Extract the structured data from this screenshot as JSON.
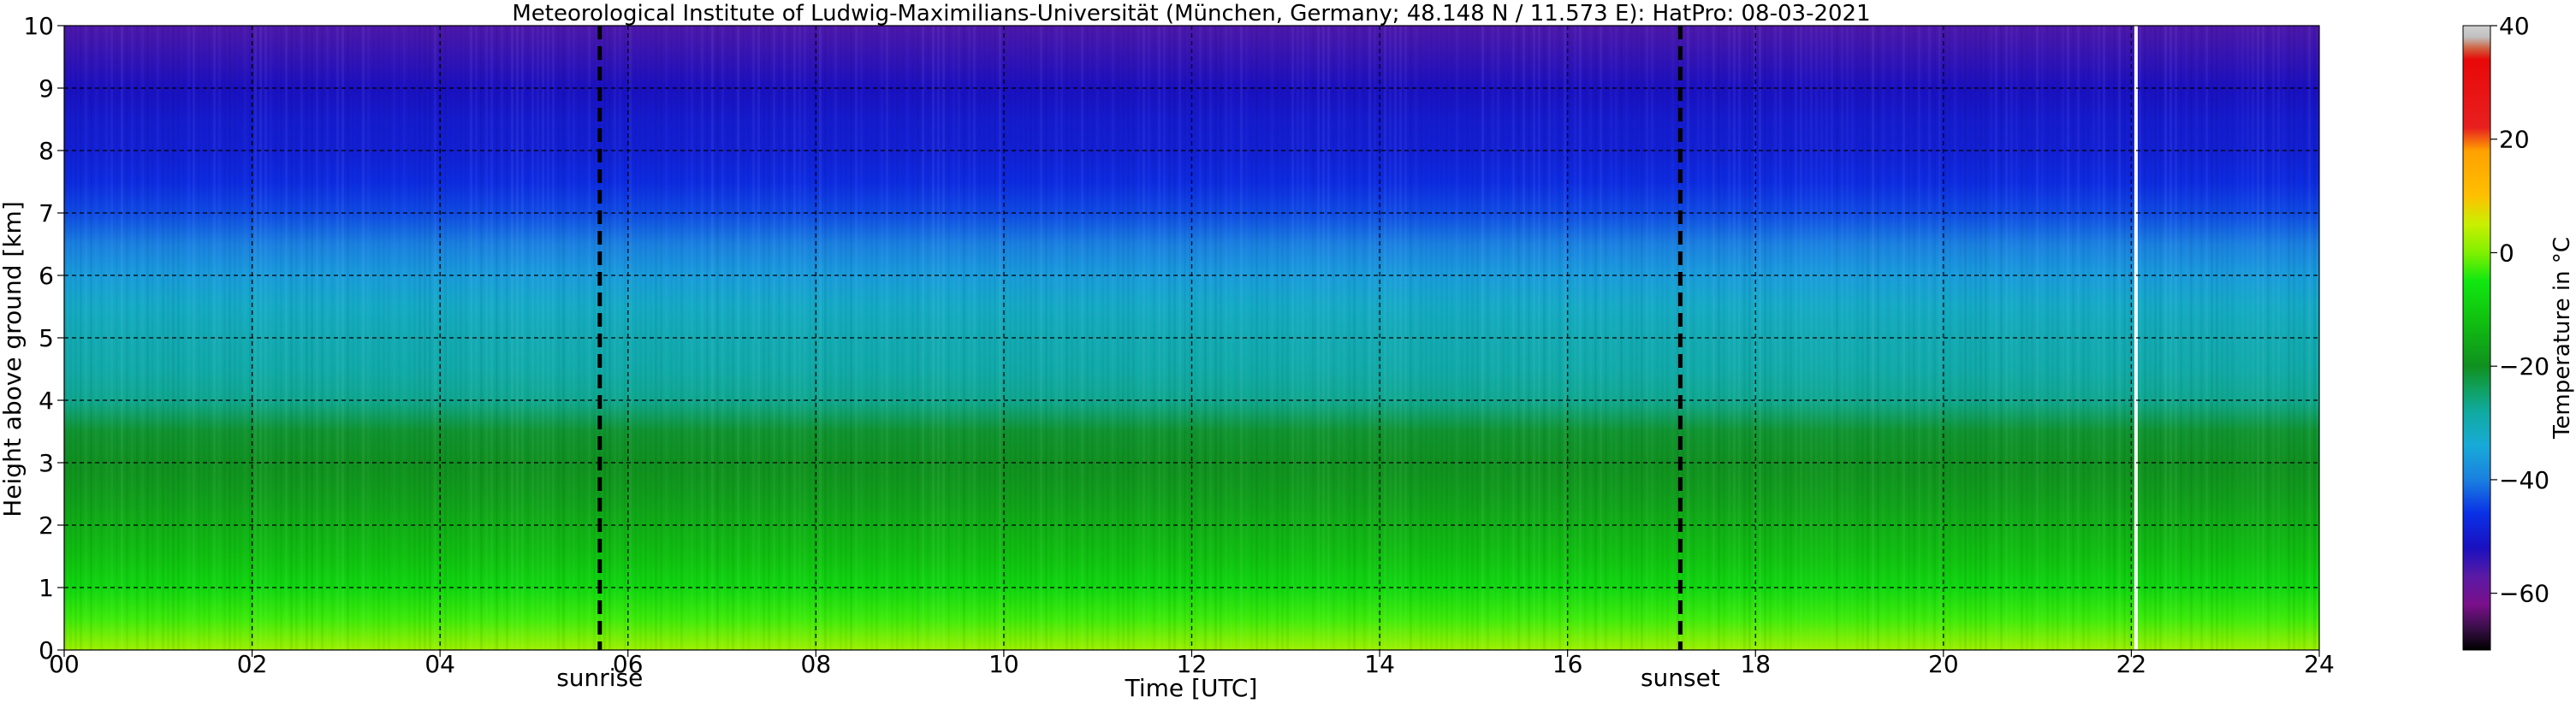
{
  "chart_data": {
    "type": "heatmap",
    "title": "Meteorological Institute of Ludwig-Maximilians-Universität (München, Germany; 48.148 N / 11.573 E):    HatPro: 08-03-2021",
    "xlabel": "Time [UTC]",
    "ylabel": "Height above ground [km]",
    "xlim": [
      0,
      24
    ],
    "ylim": [
      0,
      10
    ],
    "x_ticks": [
      "00",
      "02",
      "04",
      "06",
      "08",
      "10",
      "12",
      "14",
      "16",
      "18",
      "20",
      "22",
      "24"
    ],
    "x_tick_values": [
      0,
      2,
      4,
      6,
      8,
      10,
      12,
      14,
      16,
      18,
      20,
      22,
      24
    ],
    "y_ticks": [
      "0",
      "1",
      "2",
      "3",
      "4",
      "5",
      "6",
      "7",
      "8",
      "9",
      "10"
    ],
    "y_tick_values": [
      0,
      1,
      2,
      3,
      4,
      5,
      6,
      7,
      8,
      9,
      10
    ],
    "grid": true,
    "colorbar": {
      "label": "Temperature in °C",
      "range": [
        -70,
        40
      ],
      "ticks": [
        "40",
        "20",
        "0",
        "−20",
        "−40",
        "−60"
      ],
      "tick_values": [
        40,
        20,
        0,
        -20,
        -40,
        -60
      ],
      "stops": [
        {
          "value": -70,
          "color": "#000000"
        },
        {
          "value": -66,
          "color": "#3a0f4a"
        },
        {
          "value": -62,
          "color": "#7a0f8a"
        },
        {
          "value": -57,
          "color": "#5a1aa5"
        },
        {
          "value": -52,
          "color": "#1a10c0"
        },
        {
          "value": -46,
          "color": "#0a30e6"
        },
        {
          "value": -40,
          "color": "#1a80e0"
        },
        {
          "value": -34,
          "color": "#18aad8"
        },
        {
          "value": -28,
          "color": "#10aaa0"
        },
        {
          "value": -24,
          "color": "#10a060"
        },
        {
          "value": -20,
          "color": "#109020"
        },
        {
          "value": -12,
          "color": "#10c010"
        },
        {
          "value": -5,
          "color": "#10e810"
        },
        {
          "value": 0,
          "color": "#80f000"
        },
        {
          "value": 5,
          "color": "#c8f000"
        },
        {
          "value": 10,
          "color": "#ffc000"
        },
        {
          "value": 18,
          "color": "#ffa000"
        },
        {
          "value": 22,
          "color": "#e82020"
        },
        {
          "value": 34,
          "color": "#e80808"
        },
        {
          "value": 36,
          "color": "#d06040"
        },
        {
          "value": 38,
          "color": "#c0c0c0"
        },
        {
          "value": 40,
          "color": "#d0d0d0"
        }
      ]
    },
    "temperature_profile": {
      "heights_km": [
        0,
        0.5,
        1,
        1.5,
        2,
        2.5,
        3,
        3.5,
        4,
        4.5,
        5,
        5.5,
        6,
        6.5,
        7,
        7.5,
        8,
        8.5,
        9,
        9.5,
        10
      ],
      "temperature_c": [
        2,
        -3,
        -8,
        -12,
        -15,
        -18,
        -20,
        -21,
        -27,
        -29,
        -30,
        -32,
        -36,
        -40,
        -44,
        -47,
        -49,
        -50,
        -52,
        -54,
        -56
      ]
    },
    "events": [
      {
        "label": "sunrise",
        "time": 5.7
      },
      {
        "label": "sunset",
        "time": 17.2
      }
    ],
    "data_gap": {
      "time": 22.05
    }
  }
}
